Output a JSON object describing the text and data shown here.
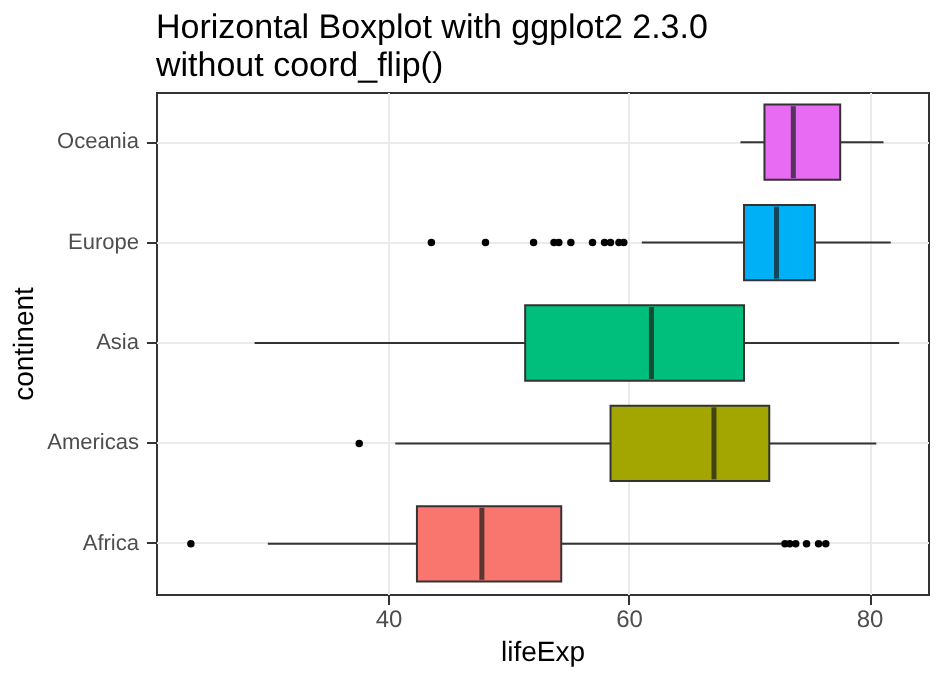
{
  "chart_data": {
    "type": "box",
    "title": "Horizontal Boxplot with ggplot2 2.3.0\nwithout coord_flip()",
    "orientation": "horizontal",
    "xlabel": "lifeExp",
    "ylabel": "continent",
    "categories": [
      "Oceania",
      "Europe",
      "Asia",
      "Americas",
      "Africa"
    ],
    "colors": [
      "#e76bf3",
      "#00b0f6",
      "#00bf7d",
      "#a3a500",
      "#f8766d"
    ],
    "boxes": [
      {
        "low": 69.3,
        "q1": 71.3,
        "median": 73.7,
        "q3": 77.6,
        "high": 81.2
      },
      {
        "low": 61.1,
        "q1": 69.6,
        "median": 72.3,
        "q3": 75.5,
        "high": 81.8,
        "outliers": [
          43.6,
          48.1,
          52.1,
          53.8,
          54.2,
          55.2,
          57.0,
          58.0,
          58.5,
          59.2,
          59.6
        ]
      },
      {
        "low": 28.9,
        "q1": 51.4,
        "median": 61.9,
        "q3": 69.6,
        "high": 82.5
      },
      {
        "low": 40.6,
        "q1": 58.5,
        "median": 67.1,
        "q3": 71.7,
        "high": 80.6,
        "outliers": [
          37.6
        ]
      },
      {
        "low": 30.0,
        "q1": 42.4,
        "median": 47.8,
        "q3": 54.4,
        "high": 72.7,
        "outliers": [
          23.6,
          73.0,
          73.4,
          73.9,
          74.8,
          75.8,
          76.4
        ]
      }
    ],
    "xlim": [
      20.7,
      84.9
    ],
    "xticks": [
      40,
      60,
      80
    ],
    "grid": true
  }
}
